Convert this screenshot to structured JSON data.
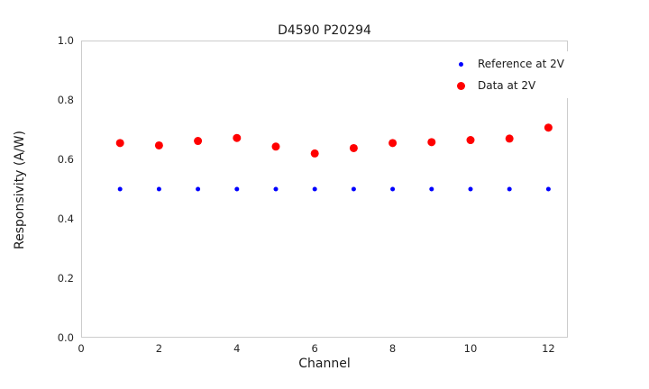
{
  "figure": {
    "title": "D4590 P20294"
  },
  "chart_data": {
    "type": "scatter",
    "title": "D4590 P20294",
    "xlabel": "Channel",
    "ylabel": "Responsivity (A/W)",
    "xlim": [
      0,
      12.5
    ],
    "ylim": [
      0,
      1.0
    ],
    "xticks": [
      "0",
      "2",
      "4",
      "6",
      "8",
      "10",
      "12"
    ],
    "xtick_values": [
      0,
      2,
      4,
      6,
      8,
      10,
      12
    ],
    "yticks": [
      "0.0",
      "0.2",
      "0.4",
      "0.6",
      "0.8",
      "1.0"
    ],
    "ytick_values": [
      0,
      0.2,
      0.4,
      0.6,
      0.8,
      1.0
    ],
    "grid": false,
    "legend_position": "upper right",
    "x": [
      1,
      2,
      3,
      4,
      5,
      6,
      7,
      8,
      9,
      10,
      11,
      12
    ],
    "series": [
      {
        "name": "Reference at 2V",
        "color": "#0000ff",
        "marker_radius": 2.5,
        "values": [
          0.5,
          0.5,
          0.5,
          0.5,
          0.5,
          0.5,
          0.5,
          0.5,
          0.5,
          0.5,
          0.5,
          0.5
        ]
      },
      {
        "name": "Data at 2V",
        "color": "#ff0000",
        "marker_radius": 4.5,
        "values": [
          0.655,
          0.647,
          0.662,
          0.672,
          0.643,
          0.62,
          0.638,
          0.655,
          0.658,
          0.665,
          0.67,
          0.707
        ]
      }
    ]
  }
}
